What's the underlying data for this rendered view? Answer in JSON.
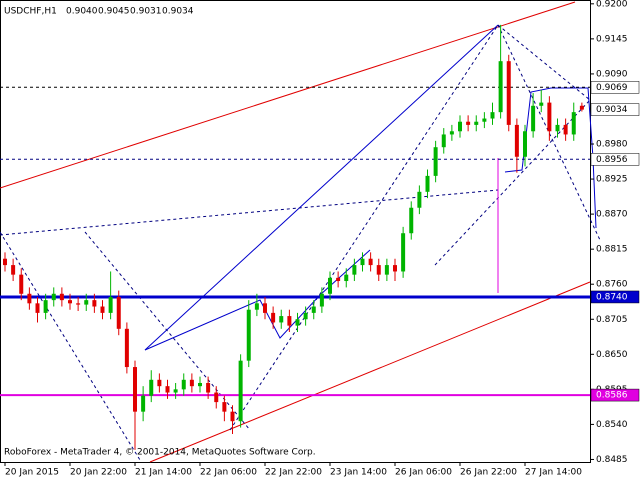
{
  "chart_data": {
    "type": "candlestick",
    "title": "USDCHF,H1",
    "header_values": [
      "0.9040",
      "0.9045",
      "0.9031",
      "0.9034"
    ],
    "footer": "RoboForex - MetaTrader 4, © 2001-2014, MetaQuotes Software Corp.",
    "categories": [
      "20 Jan 2015",
      null,
      null,
      null,
      null,
      null,
      null,
      null,
      "20 Jan 22:00",
      null,
      null,
      null,
      null,
      null,
      null,
      null,
      "21 Jan 14:00",
      null,
      null,
      null,
      null,
      null,
      null,
      null,
      "22 Jan 06:00",
      null,
      null,
      null,
      null,
      null,
      null,
      null,
      "22 Jan 22:00",
      null,
      null,
      null,
      null,
      null,
      null,
      null,
      "23 Jan 14:00",
      null,
      null,
      null,
      null,
      null,
      null,
      null,
      "26 Jan 06:00",
      null,
      null,
      null,
      null,
      null,
      null,
      null,
      "26 Jan 22:00",
      null,
      null,
      null,
      null,
      null,
      null,
      null,
      "27 Jan 14:00",
      null,
      null,
      null,
      null,
      null,
      null,
      null
    ],
    "open": [
      0.88,
      0.879,
      0.8775,
      0.8745,
      0.873,
      0.8715,
      0.8735,
      0.8745,
      0.8735,
      0.873,
      0.8728,
      0.8735,
      0.8725,
      0.8715,
      0.874,
      0.869,
      0.863,
      0.856,
      0.8585,
      0.861,
      0.86,
      0.859,
      0.8595,
      0.861,
      0.86,
      0.8605,
      0.859,
      0.8575,
      0.856,
      0.8545,
      0.864,
      0.872,
      0.873,
      0.8715,
      0.87,
      0.871,
      0.8695,
      0.8705,
      0.8715,
      0.8725,
      0.8745,
      0.877,
      0.8765,
      0.8775,
      0.879,
      0.88,
      0.879,
      0.8775,
      0.879,
      0.878,
      0.884,
      0.888,
      0.8905,
      0.893,
      0.8975,
      0.8995,
      0.9,
      0.9015,
      0.901,
      0.9015,
      0.902,
      0.903,
      0.911,
      0.901,
      0.896,
      0.9,
      0.904,
      0.9045,
      0.9,
      0.901,
      0.8995,
      0.904
    ],
    "high": [
      0.881,
      0.88,
      0.8785,
      0.8755,
      0.874,
      0.8745,
      0.8755,
      0.8755,
      0.8745,
      0.874,
      0.8745,
      0.8745,
      0.8735,
      0.878,
      0.875,
      0.87,
      0.864,
      0.86,
      0.8625,
      0.862,
      0.861,
      0.8605,
      0.862,
      0.862,
      0.8615,
      0.8615,
      0.86,
      0.8585,
      0.857,
      0.865,
      0.8735,
      0.8745,
      0.874,
      0.8725,
      0.872,
      0.872,
      0.8715,
      0.8725,
      0.8735,
      0.8755,
      0.878,
      0.878,
      0.8785,
      0.88,
      0.881,
      0.881,
      0.88,
      0.88,
      0.88,
      0.885,
      0.889,
      0.8915,
      0.894,
      0.8985,
      0.9005,
      0.901,
      0.9025,
      0.9025,
      0.9025,
      0.903,
      0.9045,
      0.9167,
      0.912,
      0.902,
      0.901,
      0.906,
      0.9065,
      0.9055,
      0.902,
      0.902,
      0.9045,
      0.9045
    ],
    "low": [
      0.878,
      0.8765,
      0.8735,
      0.872,
      0.87,
      0.8705,
      0.8725,
      0.8725,
      0.872,
      0.8718,
      0.8718,
      0.8715,
      0.8705,
      0.8705,
      0.868,
      0.862,
      0.85,
      0.8545,
      0.8575,
      0.859,
      0.858,
      0.858,
      0.8585,
      0.859,
      0.859,
      0.858,
      0.8565,
      0.8545,
      0.8525,
      0.8535,
      0.863,
      0.871,
      0.8705,
      0.869,
      0.869,
      0.8685,
      0.8685,
      0.8695,
      0.8705,
      0.8715,
      0.8735,
      0.8755,
      0.8755,
      0.8765,
      0.878,
      0.878,
      0.8765,
      0.8765,
      0.8765,
      0.877,
      0.883,
      0.887,
      0.8895,
      0.892,
      0.8965,
      0.8985,
      0.899,
      0.9,
      0.9,
      0.9005,
      0.901,
      0.902,
      0.9,
      0.8935,
      0.8945,
      0.899,
      0.903,
      0.8985,
      0.899,
      0.8985,
      0.8985,
      0.9031
    ],
    "close": [
      0.879,
      0.8775,
      0.8745,
      0.873,
      0.8715,
      0.8735,
      0.8745,
      0.8735,
      0.873,
      0.8728,
      0.8735,
      0.8725,
      0.8715,
      0.874,
      0.869,
      0.863,
      0.856,
      0.8585,
      0.861,
      0.86,
      0.859,
      0.8595,
      0.861,
      0.86,
      0.8605,
      0.859,
      0.8575,
      0.856,
      0.8545,
      0.864,
      0.872,
      0.873,
      0.8715,
      0.87,
      0.871,
      0.8695,
      0.8705,
      0.8715,
      0.8725,
      0.8745,
      0.877,
      0.8765,
      0.8775,
      0.879,
      0.88,
      0.879,
      0.8775,
      0.879,
      0.878,
      0.884,
      0.888,
      0.8905,
      0.893,
      0.8975,
      0.8995,
      0.9,
      0.9015,
      0.901,
      0.9015,
      0.902,
      0.903,
      0.911,
      0.901,
      0.896,
      0.9,
      0.904,
      0.9045,
      0.9,
      0.901,
      0.8995,
      0.903,
      0.9034
    ],
    "up_color": "#00b400",
    "down_color": "#e00000",
    "ylim": [
      0.8481,
      0.9206
    ],
    "yticks": [
      {
        "value": 0.92,
        "label": "0.9200"
      },
      {
        "value": 0.9145,
        "label": "0.9145"
      },
      {
        "value": 0.909,
        "label": "0.9090"
      },
      {
        "value": 0.898,
        "label": "0.8980"
      },
      {
        "value": 0.8925,
        "label": "0.8925"
      },
      {
        "value": 0.887,
        "label": "0.8870"
      },
      {
        "value": 0.8815,
        "label": "0.8815"
      },
      {
        "value": 0.876,
        "label": "0.8760"
      },
      {
        "value": 0.8705,
        "label": "0.8705"
      },
      {
        "value": 0.865,
        "label": "0.8650"
      },
      {
        "value": 0.8595,
        "label": "0.8595"
      },
      {
        "value": 0.854,
        "label": "0.8540"
      },
      {
        "value": 0.8485,
        "label": "0.8485"
      }
    ],
    "levels": [
      {
        "value": 0.9069,
        "label": "0.9069",
        "color": "#000000",
        "style": "dashed"
      },
      {
        "value": 0.8956,
        "label": "0.8956",
        "color": "#000080",
        "style": "dashed"
      },
      {
        "value": 0.874,
        "label": "0.8740",
        "color": "#0000cc",
        "style": "thick"
      },
      {
        "value": 0.8586,
        "label": "0.8586",
        "color": "#e000e0",
        "style": "solid"
      }
    ],
    "current_price": {
      "value": 0.9034,
      "label": "0.9034"
    }
  }
}
